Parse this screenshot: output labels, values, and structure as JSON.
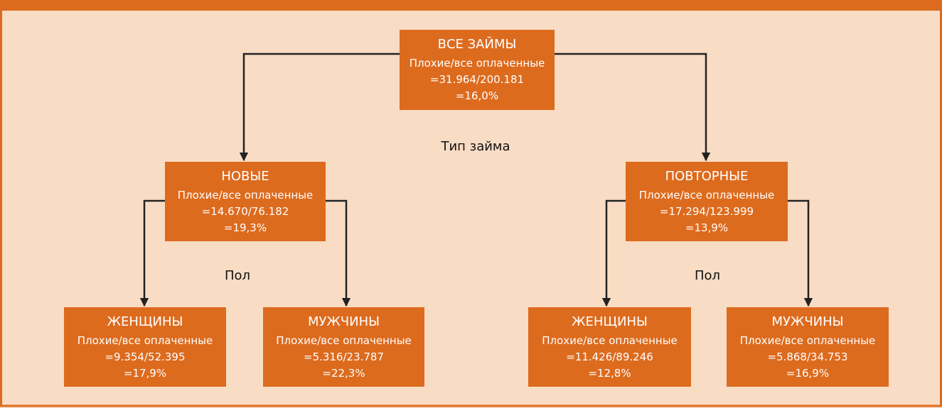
{
  "nodes": [
    {
      "label": "ВСЕ ЗАЙМЫ",
      "metric": "Плохие/все оплаченные",
      "ratio": "=31.964/200.181",
      "percent": "=16,0%"
    },
    {
      "label": "НОВЫЕ",
      "metric": "Плохие/все оплаченные",
      "ratio": "=14.670/76.182",
      "percent": "=19,3%"
    },
    {
      "label": "ПОВТОРНЫЕ",
      "metric": "Плохие/все оплаченные",
      "ratio": "=17.294/123.999",
      "percent": "=13,9%"
    },
    {
      "label": "ЖЕНЩИНЫ",
      "metric": "Плохие/все оплаченные",
      "ratio": "=9.354/52.395",
      "percent": "=17,9%"
    },
    {
      "label": "МУЖЧИНЫ",
      "metric": "Плохие/все оплаченные",
      "ratio": "=5.316/23.787",
      "percent": "=22,3%"
    },
    {
      "label": "ЖЕНЩИНЫ",
      "metric": "Плохие/все оплаченные",
      "ratio": "=11.426/89.246",
      "percent": "=12,8%"
    },
    {
      "label": "МУЖЧИНЫ",
      "metric": "Плохие/все оплаченные",
      "ratio": "=5.868/34.753",
      "percent": "=16,9%"
    }
  ],
  "split_labels": [
    "Тип займа",
    "Пол",
    "Пол"
  ]
}
